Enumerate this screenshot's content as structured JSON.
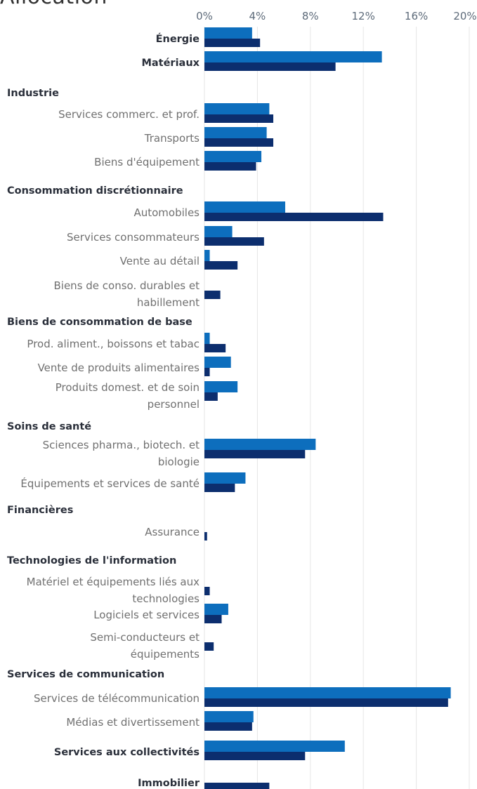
{
  "title": "Allocation",
  "colors": {
    "series_a": "#0d6ebd",
    "series_b": "#0c2e6e"
  },
  "chart_data": {
    "type": "bar",
    "orientation": "horizontal",
    "xlim": [
      0,
      20
    ],
    "x_ticks": [
      "0%",
      "4%",
      "8%",
      "12%",
      "16%",
      "20%"
    ],
    "grid": true,
    "rows": [
      {
        "label": "Énergie",
        "kind": "top",
        "a": 3.6,
        "b": 4.2
      },
      {
        "label": "Matériaux",
        "kind": "top",
        "a": 13.4,
        "b": 9.9
      },
      {
        "label": "Industrie",
        "kind": "group"
      },
      {
        "label": "Services commerc. et prof.",
        "kind": "sub",
        "a": 4.9,
        "b": 5.2
      },
      {
        "label": "Transports",
        "kind": "sub",
        "a": 4.7,
        "b": 5.2
      },
      {
        "label": "Biens d'équipement",
        "kind": "sub",
        "a": 4.3,
        "b": 3.9
      },
      {
        "label": "Consommation discrétionnaire",
        "kind": "group"
      },
      {
        "label": "Automobiles",
        "kind": "sub",
        "a": 6.1,
        "b": 13.5
      },
      {
        "label": "Services consommateurs",
        "kind": "sub",
        "a": 2.1,
        "b": 4.5
      },
      {
        "label": "Vente au détail",
        "kind": "sub",
        "a": 0.4,
        "b": 2.5
      },
      {
        "label": "Biens de conso. durables et habillement",
        "kind": "sub2",
        "a": 0,
        "b": 1.2
      },
      {
        "label": "Biens de consommation de base",
        "kind": "group"
      },
      {
        "label": "Prod. aliment., boissons et tabac",
        "kind": "sub",
        "a": 0.4,
        "b": 1.6
      },
      {
        "label": "Vente de produits alimentaires",
        "kind": "sub",
        "a": 2.0,
        "b": 0.4
      },
      {
        "label": "Produits domest. et de soin personnel",
        "kind": "sub2",
        "a": 2.5,
        "b": 1.0
      },
      {
        "label": "Soins de santé",
        "kind": "group"
      },
      {
        "label": "Sciences pharma., biotech. et biologie",
        "kind": "sub2",
        "a": 8.4,
        "b": 7.6
      },
      {
        "label": "Équipements et services de santé",
        "kind": "sub",
        "a": 3.1,
        "b": 2.3
      },
      {
        "label": "Financières",
        "kind": "group"
      },
      {
        "label": "Assurance",
        "kind": "sub",
        "a": 0,
        "b": 0.2
      },
      {
        "label": "Technologies de l'information",
        "kind": "group"
      },
      {
        "label": "Matériel et équipements liés aux technologies",
        "kind": "sub2",
        "a": 0,
        "b": 0.4
      },
      {
        "label": "Logiciels et services",
        "kind": "sub",
        "a": 1.8,
        "b": 1.3
      },
      {
        "label": "Semi-conducteurs et équipements",
        "kind": "sub2",
        "a": 0,
        "b": 0.7
      },
      {
        "label": "Services de communication",
        "kind": "group"
      },
      {
        "label": "Services de télécommunication",
        "kind": "sub",
        "a": 18.6,
        "b": 18.4
      },
      {
        "label": "Médias et divertissement",
        "kind": "sub",
        "a": 3.7,
        "b": 3.6
      },
      {
        "label": "Services aux collectivités",
        "kind": "top",
        "a": 10.6,
        "b": 7.6
      },
      {
        "label": "Immobilier",
        "kind": "top",
        "a": 0,
        "b": 4.9
      }
    ]
  }
}
